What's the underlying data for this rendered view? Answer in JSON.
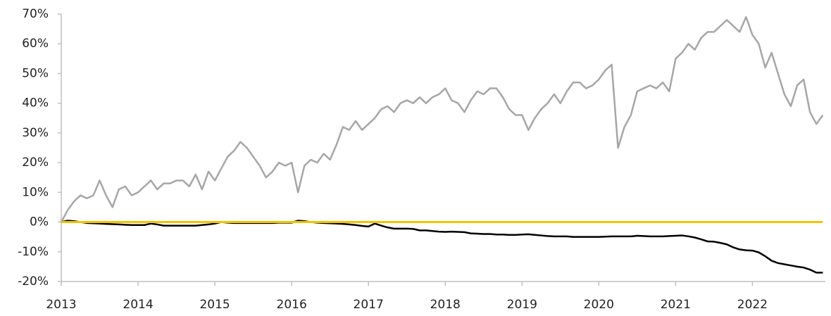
{
  "chart_data": {
    "type": "line",
    "x": [
      2013,
      2013.083,
      2013.167,
      2013.25,
      2013.333,
      2013.417,
      2013.5,
      2013.583,
      2013.667,
      2013.75,
      2013.833,
      2013.917,
      2014,
      2014.083,
      2014.167,
      2014.25,
      2014.333,
      2014.417,
      2014.5,
      2014.583,
      2014.667,
      2014.75,
      2014.833,
      2014.917,
      2015,
      2015.083,
      2015.167,
      2015.25,
      2015.333,
      2015.417,
      2015.5,
      2015.583,
      2015.667,
      2015.75,
      2015.833,
      2015.917,
      2016,
      2016.083,
      2016.167,
      2016.25,
      2016.333,
      2016.417,
      2016.5,
      2016.583,
      2016.667,
      2016.75,
      2016.833,
      2016.917,
      2017,
      2017.083,
      2017.167,
      2017.25,
      2017.333,
      2017.417,
      2017.5,
      2017.583,
      2017.667,
      2017.75,
      2017.833,
      2017.917,
      2018,
      2018.083,
      2018.167,
      2018.25,
      2018.333,
      2018.417,
      2018.5,
      2018.583,
      2018.667,
      2018.75,
      2018.833,
      2018.917,
      2019,
      2019.083,
      2019.167,
      2019.25,
      2019.333,
      2019.417,
      2019.5,
      2019.583,
      2019.667,
      2019.75,
      2019.833,
      2019.917,
      2020,
      2020.083,
      2020.167,
      2020.25,
      2020.333,
      2020.417,
      2020.5,
      2020.583,
      2020.667,
      2020.75,
      2020.833,
      2020.917,
      2021,
      2021.083,
      2021.167,
      2021.25,
      2021.333,
      2021.417,
      2021.5,
      2021.583,
      2021.667,
      2021.75,
      2021.833,
      2021.917,
      2022,
      2022.083,
      2022.167,
      2022.25,
      2022.333,
      2022.417,
      2022.5,
      2022.583,
      2022.667,
      2022.75,
      2022.833,
      2022.917
    ],
    "series": [
      {
        "color": "#a6a6a6",
        "values": [
          0,
          4,
          7,
          9,
          8,
          9,
          14,
          9,
          5,
          11,
          12,
          9,
          10,
          12,
          14,
          11,
          13,
          13,
          14,
          14,
          12,
          16,
          11,
          17,
          14,
          18,
          22,
          24,
          27,
          25,
          22,
          19,
          15,
          17,
          20,
          19,
          20,
          10,
          19,
          21,
          20,
          23,
          21,
          26,
          32,
          31,
          34,
          31,
          33,
          35,
          38,
          39,
          37,
          40,
          41,
          40,
          42,
          40,
          42,
          43,
          45,
          41,
          40,
          37,
          41,
          44,
          43,
          45,
          45,
          42,
          38,
          36,
          36,
          31,
          35,
          38,
          40,
          43,
          40,
          44,
          47,
          47,
          45,
          46,
          48,
          51,
          53,
          25,
          32,
          36,
          44,
          45,
          46,
          45,
          47,
          44,
          55,
          57,
          60,
          58,
          62,
          64,
          64,
          66,
          68,
          66,
          64,
          69,
          63,
          60,
          52,
          57,
          50,
          43,
          39,
          46,
          48,
          37,
          33,
          36
        ]
      },
      {
        "color": "#000000",
        "values": [
          0,
          0.5,
          0.3,
          0,
          -0.3,
          -0.4,
          -0.5,
          -0.6,
          -0.7,
          -0.8,
          -0.9,
          -1,
          -1,
          -1,
          -0.5,
          -0.8,
          -1.2,
          -1.2,
          -1.2,
          -1.2,
          -1.2,
          -1.2,
          -1,
          -0.8,
          -0.5,
          0,
          -0.2,
          -0.3,
          -0.3,
          -0.3,
          -0.3,
          -0.3,
          -0.3,
          -0.3,
          -0.2,
          -0.2,
          -0.2,
          0.5,
          0.3,
          0,
          -0.2,
          -0.3,
          -0.4,
          -0.5,
          -0.6,
          -0.8,
          -1,
          -1.3,
          -1.5,
          -0.5,
          -1.2,
          -1.8,
          -2.2,
          -2.2,
          -2.2,
          -2.3,
          -2.8,
          -2.8,
          -3,
          -3.2,
          -3.3,
          -3.2,
          -3.3,
          -3.4,
          -3.8,
          -3.9,
          -4,
          -4,
          -4.2,
          -4.2,
          -4.3,
          -4.3,
          -4.2,
          -4.1,
          -4.3,
          -4.5,
          -4.7,
          -4.8,
          -4.8,
          -4.8,
          -5,
          -5,
          -5,
          -5,
          -5,
          -4.9,
          -4.8,
          -4.8,
          -4.8,
          -4.8,
          -4.6,
          -4.7,
          -4.8,
          -4.8,
          -4.8,
          -4.7,
          -4.6,
          -4.5,
          -4.8,
          -5.2,
          -5.8,
          -6.5,
          -6.6,
          -7,
          -7.5,
          -8.5,
          -9.2,
          -9.5,
          -9.6,
          -10.2,
          -11.5,
          -13,
          -13.8,
          -14.2,
          -14.6,
          -15,
          -15.3,
          -16,
          -17,
          -17
        ]
      },
      {
        "color": "#f2c500",
        "values": [
          0,
          0,
          0,
          0,
          0,
          0,
          0,
          0,
          0,
          0,
          0,
          0,
          0,
          0,
          0,
          0,
          0,
          0,
          0,
          0,
          0,
          0,
          0,
          0,
          0,
          0,
          0,
          0,
          0,
          0,
          0,
          0,
          0,
          0,
          0,
          0,
          0,
          0,
          0,
          0,
          0,
          0,
          0,
          0,
          0,
          0,
          0,
          0,
          0,
          0,
          0,
          0,
          0,
          0,
          0,
          0,
          0,
          0,
          0,
          0,
          0,
          0,
          0,
          0,
          0,
          0,
          0,
          0,
          0,
          0,
          0,
          0,
          0,
          0,
          0,
          0,
          0,
          0,
          0,
          0,
          0,
          0,
          0,
          0,
          0,
          0,
          0,
          0,
          0,
          0,
          0,
          0,
          0,
          0,
          0,
          0,
          0,
          0,
          0,
          0,
          0,
          0,
          0,
          0,
          0,
          0,
          0,
          0,
          0,
          0,
          0,
          0,
          0,
          0,
          0,
          0,
          0,
          0,
          0,
          0
        ]
      }
    ],
    "xlim": [
      2013,
      2022.95
    ],
    "xticks": [
      2013,
      2014,
      2015,
      2016,
      2017,
      2018,
      2019,
      2020,
      2021,
      2022
    ],
    "ylim": [
      -20,
      70
    ],
    "yticks": [
      {
        "value": -20,
        "label": "-20%"
      },
      {
        "value": -10,
        "label": "-10%"
      },
      {
        "value": 0,
        "label": "0%"
      },
      {
        "value": 10,
        "label": "10%"
      },
      {
        "value": 20,
        "label": "20%"
      },
      {
        "value": 30,
        "label": "30%"
      },
      {
        "value": 40,
        "label": "40%"
      },
      {
        "value": 50,
        "label": "50%"
      },
      {
        "value": 60,
        "label": "60%"
      },
      {
        "value": 70,
        "label": "70%"
      }
    ],
    "grid": false
  }
}
